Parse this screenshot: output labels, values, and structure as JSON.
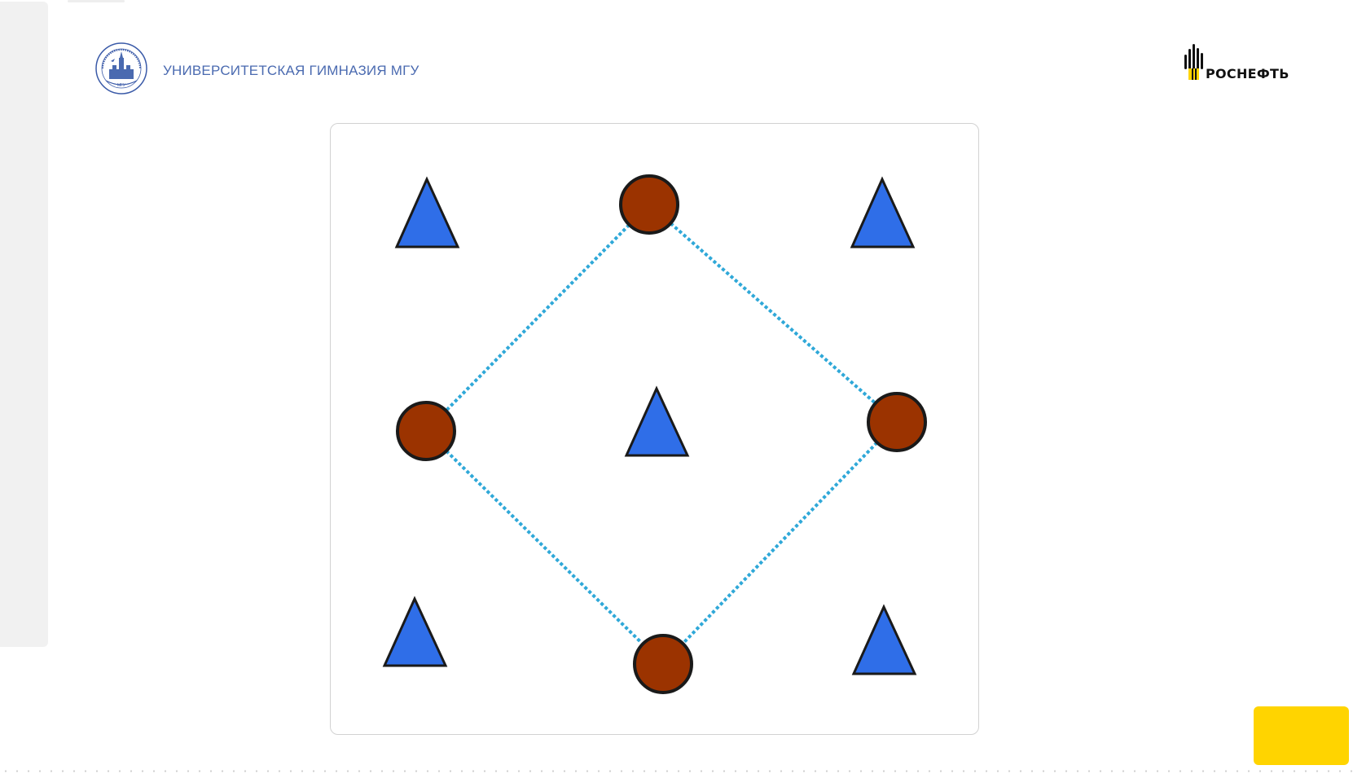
{
  "header": {
    "school_name": "УНИВЕРСИТЕТСКАЯ ГИМНАЗИЯ МГУ",
    "school_logo_icon": "msu-gymnasium-emblem-icon",
    "sponsor_name": "РОСНЕФТЬ",
    "sponsor_logo_icon": "rosneft-logo-icon"
  },
  "figure": {
    "description_shapes": {
      "triangle_color": "#2f6ee8",
      "circle_color": "#9b3300",
      "line_color": "#2fa8d8"
    },
    "triangles_count": 5,
    "circles_count": 4
  },
  "colors": {
    "accent_yellow": "#ffd400",
    "school_text": "#4a6ab0"
  }
}
